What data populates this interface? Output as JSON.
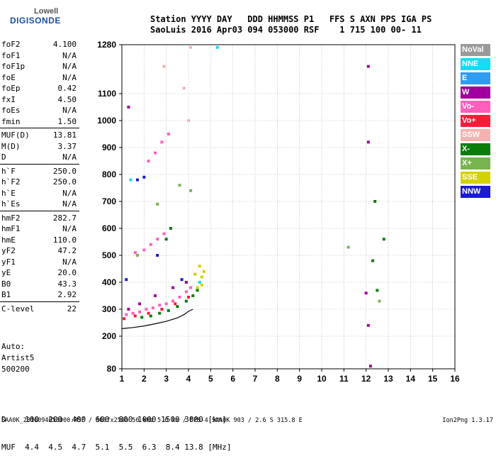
{
  "logo": {
    "line1": "Lowell",
    "line2": "DIGISONDE"
  },
  "header": {
    "line1": "Station YYYY DAY   DDD HHMMSS P1   FFS S AXN PPS IGA PS",
    "line2": "SaoLuis 2016 Apr03 094 053000 RSF    1 715 100 00- 11"
  },
  "params": [
    {
      "name": "foF2",
      "value": "4.100"
    },
    {
      "name": "foF1",
      "value": "N/A"
    },
    {
      "name": "foF1p",
      "value": "N/A"
    },
    {
      "name": "foE",
      "value": "N/A"
    },
    {
      "name": "foEp",
      "value": "0.42"
    },
    {
      "name": "fxI",
      "value": "4.50"
    },
    {
      "name": "foEs",
      "value": "N/A"
    },
    {
      "name": "fmin",
      "value": "1.50"
    },
    {
      "name": "MUF(D)",
      "value": "13.81"
    },
    {
      "name": "M(D)",
      "value": "3.37"
    },
    {
      "name": "D",
      "value": "N/A"
    },
    {
      "name": "h`F",
      "value": "250.0"
    },
    {
      "name": "h`F2",
      "value": "250.0"
    },
    {
      "name": "h`E",
      "value": "N/A"
    },
    {
      "name": "h`Es",
      "value": "N/A"
    },
    {
      "name": "hmF2",
      "value": "282.7"
    },
    {
      "name": "hmF1",
      "value": "N/A"
    },
    {
      "name": "hmE",
      "value": "110.0"
    },
    {
      "name": "yF2",
      "value": "47.2"
    },
    {
      "name": "yF1",
      "value": "N/A"
    },
    {
      "name": "yE",
      "value": "20.0"
    },
    {
      "name": "B0",
      "value": "43.3"
    },
    {
      "name": "B1",
      "value": "2.92"
    },
    {
      "name": "C-level",
      "value": "22"
    }
  ],
  "auto": {
    "line1": "Auto:",
    "line2": "Artist5",
    "line3": "500200"
  },
  "distance_table": {
    "row1": "D    100  200  400  600  800 1000 1500 3000 [km]",
    "row2": "MUF  4.4  4.5  4.7  5.1  5.5  6.3  8.4 13.8 [MHz]"
  },
  "footer": {
    "left": "SAA0K_2016094053000.RSF / 300fx256h 50 kHz 5.0 km / DPS-4 SAA0K 903 / 2.6 S 315.8 E",
    "right": "Ion2Png 1.3.17"
  },
  "legend": [
    {
      "label": "NoVal",
      "color": "#9a9a9a"
    },
    {
      "label": "NNE",
      "color": "#19d9f5"
    },
    {
      "label": "E",
      "color": "#2e9cf0"
    },
    {
      "label": "W",
      "color": "#a0009e"
    },
    {
      "label": "Vo-",
      "color": "#ff5fbd"
    },
    {
      "label": "Vo+",
      "color": "#ff1a3a"
    },
    {
      "label": "SSW",
      "color": "#f5b2b0"
    },
    {
      "label": "X-",
      "color": "#0a7d0a"
    },
    {
      "label": "X+",
      "color": "#78b450"
    },
    {
      "label": "SSE",
      "color": "#d2d200"
    },
    {
      "label": "NNW",
      "color": "#1a1ad2"
    }
  ],
  "chart_data": {
    "type": "scatter",
    "xlabel": "",
    "ylabel": "",
    "xlim": [
      1,
      16
    ],
    "ylim": [
      80,
      1280
    ],
    "x_ticks": [
      1,
      2,
      3,
      4,
      5,
      6,
      7,
      8,
      9,
      10,
      11,
      12,
      13,
      14,
      15,
      16
    ],
    "y_ticks": [
      80,
      200,
      300,
      400,
      500,
      600,
      700,
      800,
      900,
      1000,
      1100,
      1280
    ],
    "grid": true,
    "legend_position": "right",
    "trace": {
      "x": [
        1.0,
        1.5,
        2.0,
        2.5,
        3.0,
        3.5,
        3.8,
        4.0,
        4.2
      ],
      "y": [
        228,
        232,
        238,
        246,
        255,
        268,
        280,
        292,
        300
      ]
    },
    "series": [
      {
        "name": "Vo-",
        "points": [
          [
            1.2,
            280
          ],
          [
            1.5,
            285
          ],
          [
            1.8,
            290
          ],
          [
            2.1,
            300
          ],
          [
            2.4,
            305
          ],
          [
            2.7,
            315
          ],
          [
            3.0,
            320
          ],
          [
            3.3,
            330
          ],
          [
            3.6,
            345
          ],
          [
            3.9,
            365
          ],
          [
            4.1,
            380
          ],
          [
            2.0,
            520
          ],
          [
            2.3,
            540
          ],
          [
            2.6,
            560
          ],
          [
            2.9,
            580
          ],
          [
            1.6,
            510
          ],
          [
            2.2,
            850
          ],
          [
            2.5,
            880
          ],
          [
            2.8,
            920
          ],
          [
            3.1,
            950
          ]
        ]
      },
      {
        "name": "X-",
        "points": [
          [
            1.9,
            270
          ],
          [
            2.3,
            275
          ],
          [
            2.7,
            285
          ],
          [
            3.1,
            295
          ],
          [
            3.5,
            310
          ],
          [
            3.9,
            330
          ],
          [
            4.2,
            350
          ],
          [
            4.4,
            370
          ],
          [
            3.2,
            600
          ],
          [
            3.0,
            560
          ],
          [
            12.4,
            700
          ],
          [
            12.8,
            560
          ],
          [
            12.3,
            480
          ],
          [
            12.5,
            370
          ]
        ]
      },
      {
        "name": "SSE",
        "points": [
          [
            4.4,
            380
          ],
          [
            4.5,
            400
          ],
          [
            4.6,
            420
          ],
          [
            4.7,
            440
          ],
          [
            4.5,
            460
          ],
          [
            4.3,
            430
          ],
          [
            4.6,
            390
          ]
        ]
      },
      {
        "name": "W",
        "points": [
          [
            1.3,
            300
          ],
          [
            1.8,
            320
          ],
          [
            2.5,
            350
          ],
          [
            3.3,
            380
          ],
          [
            3.9,
            400
          ],
          [
            12.1,
            1200
          ],
          [
            12.1,
            920
          ],
          [
            12.0,
            360
          ],
          [
            12.1,
            240
          ],
          [
            12.2,
            90
          ],
          [
            1.3,
            1050
          ]
        ]
      },
      {
        "name": "Vo+",
        "points": [
          [
            1.1,
            265
          ],
          [
            1.6,
            275
          ],
          [
            2.2,
            285
          ],
          [
            2.8,
            300
          ],
          [
            3.4,
            320
          ],
          [
            4.0,
            345
          ]
        ]
      },
      {
        "name": "NNW",
        "points": [
          [
            2.0,
            790
          ],
          [
            1.7,
            780
          ],
          [
            2.6,
            500
          ],
          [
            3.7,
            410
          ],
          [
            1.2,
            410
          ]
        ]
      },
      {
        "name": "NNE",
        "points": [
          [
            5.3,
            1270
          ],
          [
            1.4,
            780
          ],
          [
            4.5,
            400
          ]
        ]
      },
      {
        "name": "SSW",
        "points": [
          [
            4.0,
            1000
          ],
          [
            3.8,
            1120
          ],
          [
            2.9,
            1200
          ],
          [
            4.1,
            1270
          ]
        ]
      },
      {
        "name": "X+",
        "points": [
          [
            1.7,
            500
          ],
          [
            2.6,
            690
          ],
          [
            3.6,
            760
          ],
          [
            4.1,
            740
          ],
          [
            11.2,
            530
          ],
          [
            12.6,
            330
          ]
        ]
      }
    ]
  }
}
